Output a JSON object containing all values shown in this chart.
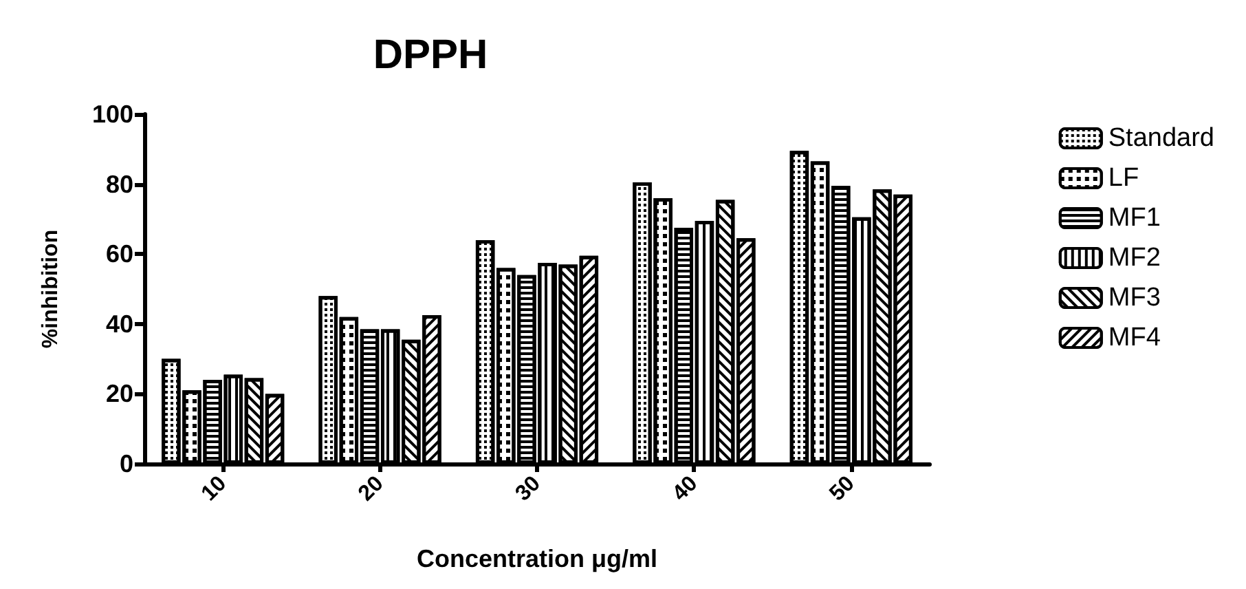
{
  "chart_data": {
    "type": "bar",
    "title": "DPPH",
    "xlabel": "Concentration μg/ml",
    "ylabel": "%inhibition",
    "categories": [
      "10",
      "20",
      "30",
      "40",
      "50"
    ],
    "series": [
      {
        "name": "Standard",
        "color": "#000000",
        "values": [
          30,
          48,
          64,
          80.5,
          89.5
        ]
      },
      {
        "name": "LF",
        "color": "#000000",
        "values": [
          21,
          42,
          56,
          76,
          86.5
        ]
      },
      {
        "name": "MF1",
        "color": "#000000",
        "values": [
          24,
          38.5,
          54,
          67.5,
          79.5
        ]
      },
      {
        "name": "MF2",
        "color": "#000000",
        "values": [
          25.5,
          38.5,
          57.5,
          69.5,
          70.5
        ]
      },
      {
        "name": "MF3",
        "color": "#000000",
        "values": [
          24.5,
          35.5,
          57,
          75.5,
          78.5
        ]
      },
      {
        "name": "MF4",
        "color": "#000000",
        "values": [
          20,
          42.5,
          59.5,
          64.5,
          77
        ]
      }
    ],
    "ylim": [
      0,
      100
    ],
    "yticks": [
      0,
      20,
      40,
      60,
      80,
      100
    ],
    "grid": false,
    "legend": "top right"
  }
}
